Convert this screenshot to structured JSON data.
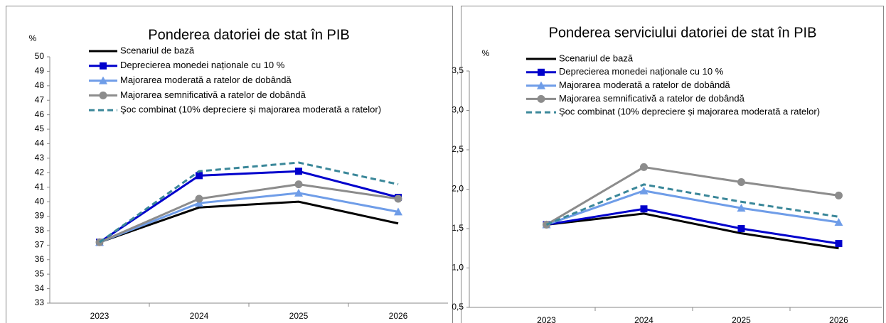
{
  "chart_data": [
    {
      "type": "line",
      "title": "Ponderea datoriei de stat în PIB",
      "y_label": "%",
      "categories": [
        "2023",
        "2024",
        "2025",
        "2026"
      ],
      "ylim": [
        33,
        50
      ],
      "yticks": [
        33,
        34,
        35,
        36,
        37,
        38,
        39,
        40,
        41,
        42,
        43,
        44,
        45,
        46,
        47,
        48,
        49,
        50
      ],
      "series": [
        {
          "name": "Scenariul de bază",
          "color": "#000000",
          "marker": null,
          "dashed": false,
          "values": [
            37.2,
            39.6,
            40.0,
            38.5
          ]
        },
        {
          "name": "Deprecierea monedei naționale cu 10 %",
          "color": "#0000cc",
          "marker": "square",
          "dashed": false,
          "values": [
            37.2,
            41.8,
            42.1,
            40.3
          ]
        },
        {
          "name": "Majorarea moderată a ratelor de dobândă",
          "color": "#6f9de8",
          "marker": "triangle",
          "dashed": false,
          "values": [
            37.2,
            39.9,
            40.6,
            39.3
          ]
        },
        {
          "name": "Majorarea semnificativă a ratelor de dobândă",
          "color": "#8c8c8c",
          "marker": "circle",
          "dashed": false,
          "values": [
            37.2,
            40.2,
            41.2,
            40.2
          ]
        },
        {
          "name": "Şoc combinat (10% depreciere și majorarea moderată a ratelor)",
          "color": "#3a8799",
          "marker": null,
          "dashed": true,
          "values": [
            37.2,
            42.1,
            42.7,
            41.2
          ]
        }
      ]
    },
    {
      "type": "line",
      "title": "Ponderea serviciului datoriei de stat în PIB",
      "y_label": "%",
      "categories": [
        "2023",
        "2024",
        "2025",
        "2026"
      ],
      "ylim": [
        0.5,
        3.5
      ],
      "yticks": [
        {
          "value": 0.5,
          "label": "0,5"
        },
        {
          "value": 1.0,
          "label": "1,0"
        },
        {
          "value": 1.5,
          "label": "1,5"
        },
        {
          "value": 2.0,
          "label": "2,0"
        },
        {
          "value": 2.5,
          "label": "2,5"
        },
        {
          "value": 3.0,
          "label": "3,0"
        },
        {
          "value": 3.5,
          "label": "3,5"
        }
      ],
      "series": [
        {
          "name": "Scenariul de bază",
          "color": "#000000",
          "marker": null,
          "dashed": false,
          "values": [
            1.55,
            1.69,
            1.44,
            1.25
          ]
        },
        {
          "name": "Deprecierea monedei naționale cu 10 %",
          "color": "#0000cc",
          "marker": "square",
          "dashed": false,
          "values": [
            1.55,
            1.75,
            1.5,
            1.31
          ]
        },
        {
          "name": "Majorarea moderată a ratelor de dobândă",
          "color": "#6f9de8",
          "marker": "triangle",
          "dashed": false,
          "values": [
            1.55,
            1.98,
            1.76,
            1.58
          ]
        },
        {
          "name": "Majorarea semnificativă a ratelor de dobândă",
          "color": "#8c8c8c",
          "marker": "circle",
          "dashed": false,
          "values": [
            1.55,
            2.28,
            2.09,
            1.92
          ]
        },
        {
          "name": "Şoc combinat (10% depreciere și majorarea moderată a ratelor)",
          "color": "#3a8799",
          "marker": null,
          "dashed": true,
          "values": [
            1.55,
            2.06,
            1.84,
            1.65
          ]
        }
      ]
    }
  ]
}
